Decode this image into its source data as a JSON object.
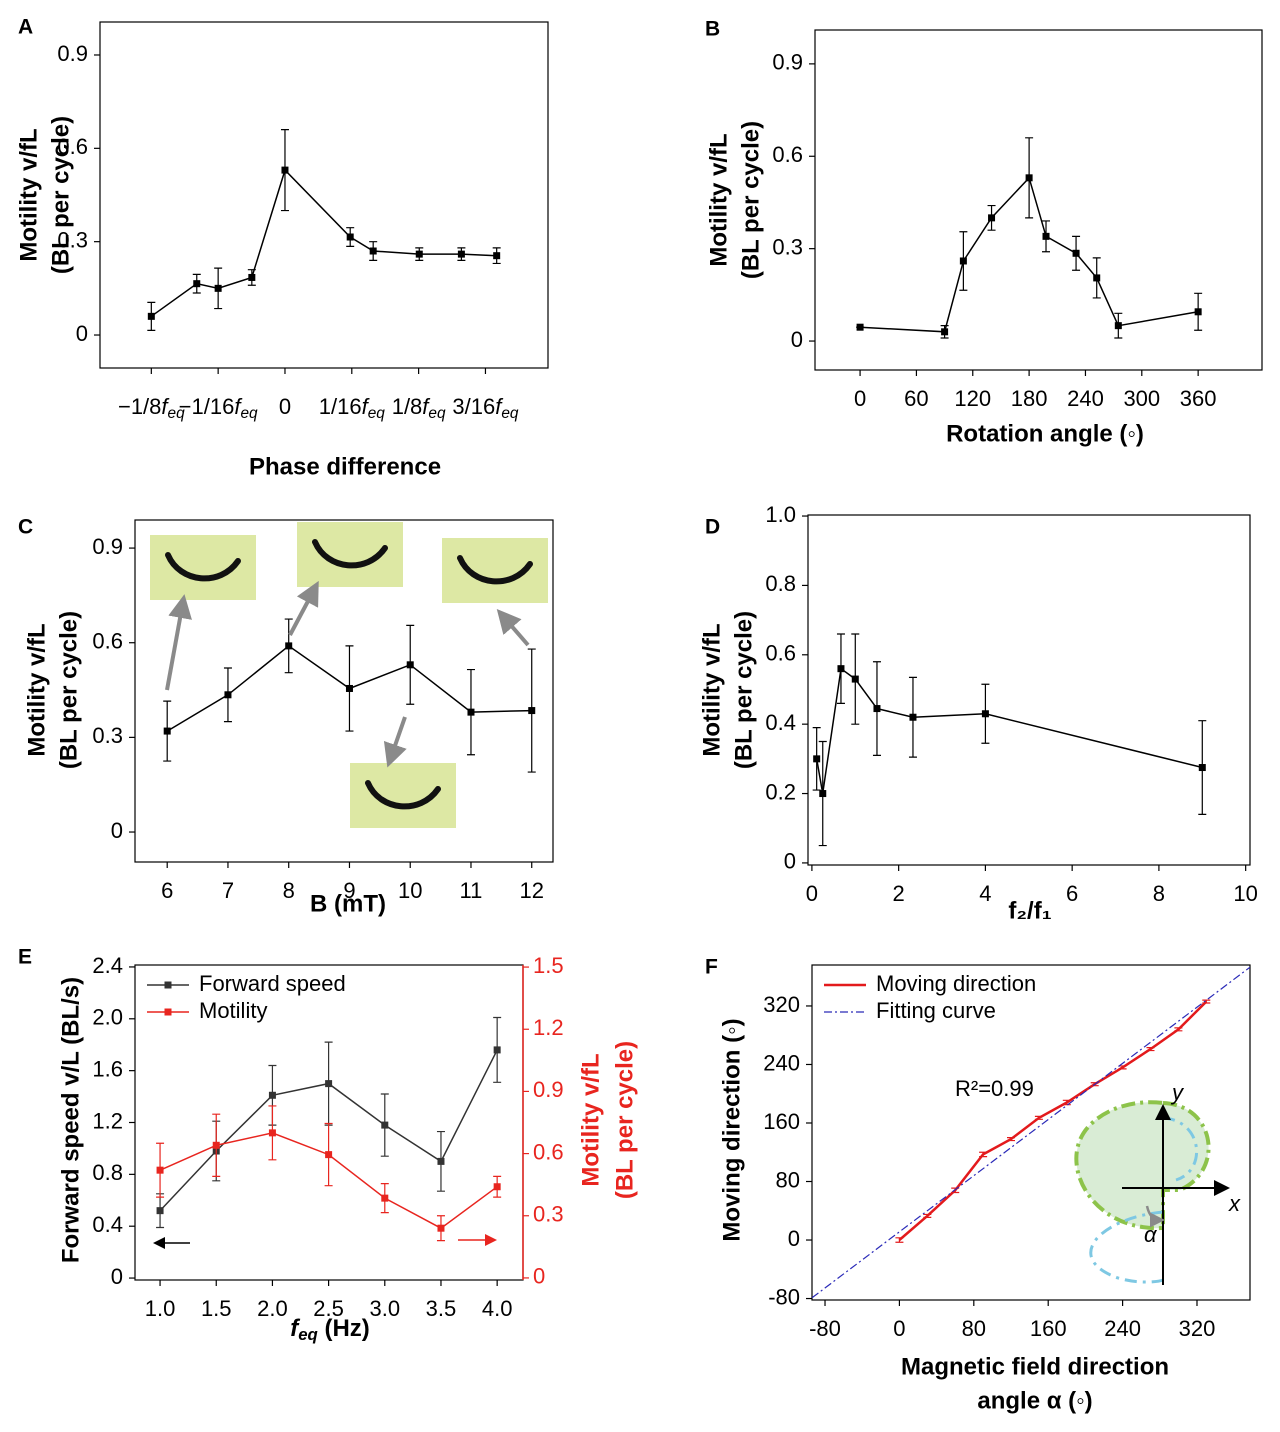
{
  "chart_data": [
    {
      "type": "line",
      "panel_label": "A",
      "ylabel": [
        "Motility v/fL",
        "(BL per cycle)"
      ],
      "xlabel": "Phase difference",
      "xlim": [
        -0.173,
        0.246
      ],
      "ylim": [
        -0.106,
        1.006
      ],
      "xticks": [
        {
          "value": -0.125,
          "label": "−1/8feq"
        },
        {
          "value": -0.0625,
          "label": "−1/16feq"
        },
        0,
        {
          "value": 0.0625,
          "label": "1/16feq"
        },
        {
          "value": 0.125,
          "label": "1/8feq"
        },
        {
          "value": 0.1875,
          "label": "3/16feq"
        }
      ],
      "yticks": [
        0,
        0.3,
        0.6,
        0.9
      ],
      "series": [
        {
          "color": "#000000",
          "marker": "square",
          "x": [
            -0.125,
            -0.0825,
            -0.0625,
            -0.031,
            0,
            0.061,
            0.0825,
            0.1256,
            0.165,
            0.198
          ],
          "values": [
            0.06,
            0.165,
            0.15,
            0.185,
            0.53,
            0.315,
            0.27,
            0.26,
            0.26,
            0.255
          ],
          "errors": [
            0.045,
            0.03,
            0.065,
            0.025,
            0.13,
            0.03,
            0.03,
            0.02,
            0.02,
            0.025
          ]
        }
      ]
    },
    {
      "type": "line",
      "panel_label": "B",
      "ylabel": [
        "Motility v/fL",
        "(BL per cycle)"
      ],
      "xlabel": "Rotation angle (◦)",
      "xlim": [
        -48,
        428
      ],
      "ylim": [
        -0.094,
        1.01
      ],
      "xticks": [
        0,
        60,
        120,
        180,
        240,
        300,
        360
      ],
      "yticks": [
        0,
        0.3,
        0.6,
        0.9
      ],
      "series": [
        {
          "color": "#000000",
          "marker": "square",
          "x": [
            0,
            90,
            110,
            140,
            180,
            198,
            230,
            252,
            275,
            360
          ],
          "values": [
            0.045,
            0.03,
            0.26,
            0.4,
            0.53,
            0.34,
            0.285,
            0.205,
            0.05,
            0.095
          ],
          "errors": [
            0,
            0.02,
            0.095,
            0.04,
            0.13,
            0.05,
            0.055,
            0.065,
            0.04,
            0.06
          ]
        }
      ]
    },
    {
      "type": "line",
      "panel_label": "C",
      "ylabel": [
        "Motility v/fL",
        "(BL per cycle)"
      ],
      "xlabel": "B (mT)",
      "xlim": [
        5.47,
        12.35
      ],
      "ylim": [
        -0.095,
        0.989
      ],
      "xticks": [
        6,
        7,
        8,
        9,
        10,
        11,
        12
      ],
      "yticks": [
        0,
        0.3,
        0.6,
        0.9
      ],
      "series": [
        {
          "color": "#000000",
          "marker": "square",
          "x": [
            6,
            7,
            8,
            9,
            10,
            11,
            12
          ],
          "values": [
            0.32,
            0.435,
            0.59,
            0.455,
            0.53,
            0.38,
            0.385
          ],
          "errors": [
            0.095,
            0.085,
            0.085,
            0.135,
            0.125,
            0.135,
            0.195
          ]
        }
      ]
    },
    {
      "type": "line",
      "panel_label": "D",
      "ylabel": [
        "Motility v/fL",
        "(BL per cycle)"
      ],
      "xlabel": "f₂/f₁",
      "xlim": [
        -0.09,
        10.1
      ],
      "ylim": [
        -0.006,
        1.003
      ],
      "xticks": [
        0,
        2,
        4,
        6,
        8,
        10
      ],
      "yticks": [
        0,
        0.2,
        0.4,
        0.6,
        0.8,
        {
          "value": 1,
          "label": "1.0"
        }
      ],
      "series": [
        {
          "color": "#000000",
          "marker": "square",
          "x": [
            0.11,
            0.25,
            0.67,
            1,
            1.5,
            2.33,
            4,
            9
          ],
          "values": [
            0.3,
            0.2,
            0.56,
            0.53,
            0.445,
            0.42,
            0.43,
            0.275
          ],
          "errors": [
            0.09,
            0.15,
            0.1,
            0.13,
            0.135,
            0.115,
            0.085,
            0.135
          ]
        }
      ]
    },
    {
      "type": "line",
      "panel_label": "E",
      "ylabel": [
        "Forward speed v/L (BL/s)"
      ],
      "y2label": [
        "Motility v/fL",
        "(BL per cycle)"
      ],
      "y2color": "#e8251f",
      "xlabel": "feq (Hz)",
      "legend": "upper left",
      "xlim": [
        0.777,
        4.23
      ],
      "ylim": [
        -0.015,
        2.415
      ],
      "y2lim": [
        -0.01,
        1.51
      ],
      "xticks": [
        {
          "value": 1,
          "label": "1.0"
        },
        1.5,
        {
          "value": 2,
          "label": "2.0"
        },
        2.5,
        {
          "value": 3,
          "label": "3.0"
        },
        3.5,
        {
          "value": 4,
          "label": "4.0"
        }
      ],
      "yticks": [
        0,
        0.4,
        0.8,
        1.2,
        1.6,
        {
          "value": 2,
          "label": "2.0"
        },
        2.4
      ],
      "y2ticks": [
        0,
        0.3,
        0.6,
        0.9,
        1.2,
        1.5
      ],
      "series": [
        {
          "name": "Forward speed",
          "color": "#333333",
          "marker": "square",
          "x": [
            1,
            1.5,
            2,
            2.5,
            3,
            3.5,
            4
          ],
          "values": [
            0.52,
            0.98,
            1.41,
            1.5,
            1.18,
            0.9,
            1.76
          ],
          "errors": [
            0.13,
            0.23,
            0.23,
            0.32,
            0.24,
            0.23,
            0.25
          ]
        },
        {
          "name": "Motility",
          "color": "#e8251f",
          "marker": "square",
          "axis": "y2",
          "x": [
            1,
            1.5,
            2,
            2.5,
            3,
            3.5,
            4
          ],
          "values": [
            0.52,
            0.64,
            0.7,
            0.595,
            0.385,
            0.24,
            0.44
          ],
          "errors": [
            0.13,
            0.15,
            0.13,
            0.15,
            0.07,
            0.06,
            0.05
          ]
        }
      ]
    },
    {
      "type": "line",
      "panel_label": "F",
      "ylabel": [
        "Moving direction (◦)"
      ],
      "xlabel": [
        "Magnetic field direction",
        "angle α (◦)"
      ],
      "legend": "upper left",
      "annotation": "R²=0.99",
      "inset_labels": [
        "y",
        "x",
        "α"
      ],
      "xlim": [
        -94,
        377
      ],
      "ylim": [
        -82,
        376
      ],
      "xticks": [
        -80,
        0,
        80,
        160,
        240,
        320
      ],
      "yticks": [
        -80,
        0,
        80,
        160,
        240,
        320
      ],
      "series": [
        {
          "name": "Moving direction",
          "color": "#e31a1c",
          "width": 2.5,
          "x": [
            0,
            30,
            60,
            90,
            120,
            150,
            180,
            210,
            240,
            270,
            300,
            330
          ],
          "values": [
            0,
            33,
            68,
            117,
            138,
            167,
            188,
            213,
            236,
            261,
            288,
            326
          ],
          "errors": [
            3,
            2,
            3,
            3,
            2,
            2,
            3,
            2,
            2,
            2,
            2,
            2
          ]
        },
        {
          "name": "Fitting curve",
          "color": "#2a2ab8",
          "dash": "dashdot",
          "width": 1.2,
          "x": [
            -94,
            377
          ],
          "values": [
            -79,
            373
          ]
        }
      ]
    }
  ]
}
